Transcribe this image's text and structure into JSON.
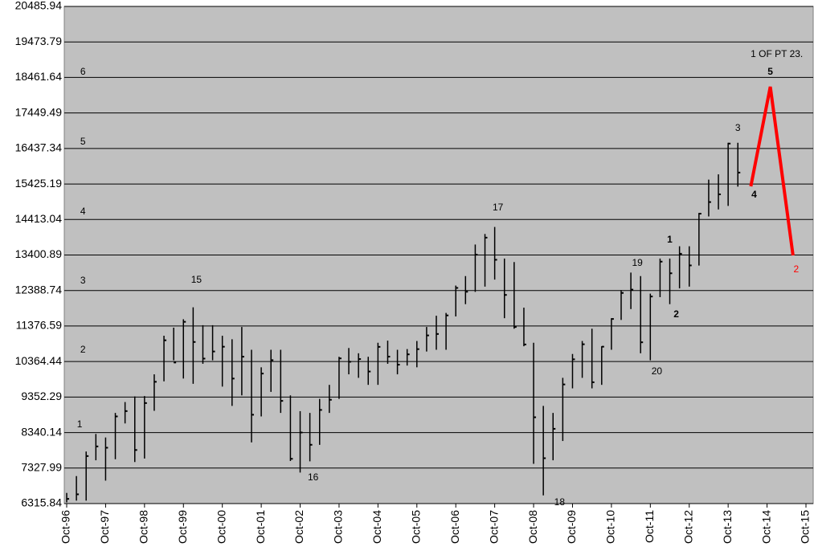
{
  "chart_data": {
    "type": "hlc",
    "color": "#000000",
    "grid": true,
    "ylim": [
      6315.84,
      20485.94
    ],
    "yticks": [
      6315.84,
      7327.99,
      8340.14,
      9352.29,
      10364.44,
      11376.59,
      12388.74,
      13400.89,
      14413.04,
      15425.19,
      16437.34,
      17449.49,
      18461.64,
      19473.79,
      20485.94
    ],
    "xlim": [
      "Oct-96",
      "Oct-15"
    ],
    "xticks": [
      "Oct-96",
      "Oct-97",
      "Oct-98",
      "Oct-99",
      "Oct-00",
      "Oct-01",
      "Oct-02",
      "Oct-03",
      "Oct-04",
      "Oct-05",
      "Oct-06",
      "Oct-07",
      "Oct-08",
      "Oct-09",
      "Oct-10",
      "Oct-11",
      "Oct-12",
      "Oct-13",
      "Oct-14",
      "Oct-15"
    ],
    "x": [
      "Oct-96",
      "Jan-97",
      "Apr-97",
      "Jul-97",
      "Oct-97",
      "Jan-98",
      "Apr-98",
      "Jul-98",
      "Oct-98",
      "Jan-99",
      "Apr-99",
      "Jul-99",
      "Oct-99",
      "Jan-00",
      "Apr-00",
      "Jul-00",
      "Oct-00",
      "Jan-01",
      "Apr-01",
      "Jul-01",
      "Oct-01",
      "Jan-02",
      "Apr-02",
      "Jul-02",
      "Oct-02",
      "Jan-03",
      "Apr-03",
      "Jul-03",
      "Oct-03",
      "Jan-04",
      "Apr-04",
      "Jul-04",
      "Oct-04",
      "Jan-05",
      "Apr-05",
      "Jul-05",
      "Oct-05",
      "Jan-06",
      "Apr-06",
      "Jul-06",
      "Oct-06",
      "Jan-07",
      "Apr-07",
      "Jul-07",
      "Oct-07",
      "Jan-08",
      "Apr-08",
      "Jul-08",
      "Oct-08",
      "Jan-09",
      "Apr-09",
      "Jul-09",
      "Oct-09",
      "Jan-10",
      "Apr-10",
      "Jul-10",
      "Oct-10",
      "Jan-11",
      "Apr-11",
      "Jul-11",
      "Oct-11",
      "Jan-12",
      "Apr-12",
      "Jul-12",
      "Oct-12",
      "Jan-13",
      "Apr-13",
      "Jul-13",
      "Oct-13",
      "Jan-14"
    ],
    "high": [
      6620,
      7100,
      7800,
      8300,
      8200,
      8900,
      9210,
      9370,
      9380,
      10000,
      11100,
      11330,
      11570,
      11910,
      11400,
      11400,
      11100,
      11000,
      11350,
      10700,
      10200,
      10700,
      10700,
      9400,
      8950,
      8900,
      9300,
      9700,
      10500,
      10750,
      10600,
      10500,
      10900,
      10960,
      10700,
      10720,
      10950,
      11350,
      11670,
      11750,
      12530,
      12800,
      13700,
      14000,
      14200,
      13300,
      13200,
      11900,
      10900,
      9100,
      8900,
      9900,
      10580,
      10950,
      11300,
      10800,
      11600,
      12400,
      12900,
      12800,
      12300,
      13300,
      13300,
      13650,
      13650,
      14600,
      15550,
      15700,
      16600,
      16600
    ],
    "low": [
      6350,
      6400,
      6400,
      7550,
      6970,
      7580,
      8600,
      7500,
      7600,
      8960,
      9800,
      10400,
      9880,
      9730,
      10300,
      10400,
      9650,
      9100,
      9400,
      8060,
      8800,
      9500,
      8900,
      7530,
      7200,
      7520,
      7990,
      8900,
      9300,
      10000,
      9900,
      9700,
      9700,
      10300,
      10000,
      10250,
      10200,
      10650,
      10700,
      10700,
      11650,
      12000,
      12350,
      12500,
      12700,
      11600,
      11300,
      10800,
      7450,
      6550,
      7550,
      8100,
      9600,
      9900,
      9600,
      9700,
      10700,
      11550,
      11860,
      10600,
      10400,
      12200,
      12000,
      12450,
      12500,
      13100,
      14500,
      14700,
      14800,
      15350
    ],
    "close": [
      6450,
      6580,
      7670,
      7945,
      7908,
      8800,
      8952,
      7843,
      9181,
      9787,
      10970,
      10337,
      11497,
      10922,
      10448,
      10651,
      10787,
      9879,
      10502,
      8848,
      10022,
      10404,
      9243,
      7592,
      8342,
      7992,
      8985,
      9275,
      10454,
      10358,
      10435,
      10080,
      10783,
      10504,
      10275,
      10569,
      10718,
      11109,
      11150,
      11679,
      12463,
      12354,
      13409,
      13896,
      13265,
      12263,
      11350,
      10851,
      8776,
      7609,
      8447,
      9712,
      10428,
      10857,
      9774,
      10788,
      11578,
      12320,
      12414,
      10913,
      12218,
      13212,
      12880,
      13437,
      13104,
      14579,
      14910,
      15130,
      16577,
      15750
    ],
    "projection": {
      "color": "#ff0000",
      "x": [
        "May-14",
        "Nov-14",
        "Jun-15"
      ],
      "values": [
        15359,
        18197,
        13390
      ]
    },
    "annotations": [
      {
        "text": "6",
        "x": "Mar-97",
        "y": 18609
      },
      {
        "text": "5",
        "x": "Mar-97",
        "y": 16617
      },
      {
        "text": "4",
        "x": "Mar-97",
        "y": 14626
      },
      {
        "text": "3",
        "x": "Mar-97",
        "y": 12657
      },
      {
        "text": "2",
        "x": "Mar-97",
        "y": 10689
      },
      {
        "text": "1",
        "x": "Feb-97",
        "y": 8560
      },
      {
        "text": "15",
        "x": "Feb-00",
        "y": 12680
      },
      {
        "text": "16",
        "x": "Feb-03",
        "y": 7050
      },
      {
        "text": "17",
        "x": "Nov-07",
        "y": 14740
      },
      {
        "text": "18",
        "x": "Jun-09",
        "y": 6340
      },
      {
        "text": "19",
        "x": "Jun-11",
        "y": 13161
      },
      {
        "text": "20",
        "x": "Dec-11",
        "y": 10071
      },
      {
        "text": "1",
        "x": "Apr-12",
        "y": 13825,
        "bold": true
      },
      {
        "text": "2",
        "x": "Jun-12",
        "y": 11696,
        "bold": true
      },
      {
        "text": "3",
        "x": "Jan-14",
        "y": 17007
      },
      {
        "text": "4",
        "x": "Jun-14",
        "y": 15107,
        "bold": true
      },
      {
        "text": "5",
        "x": "Nov-14",
        "y": 18609,
        "bold": true
      },
      {
        "text": "2",
        "x": "Jul-15",
        "y": 12978,
        "color": "#ff0000"
      },
      {
        "text": "1 OF PT 23.",
        "x": "Jan-15",
        "y": 19112
      }
    ]
  }
}
